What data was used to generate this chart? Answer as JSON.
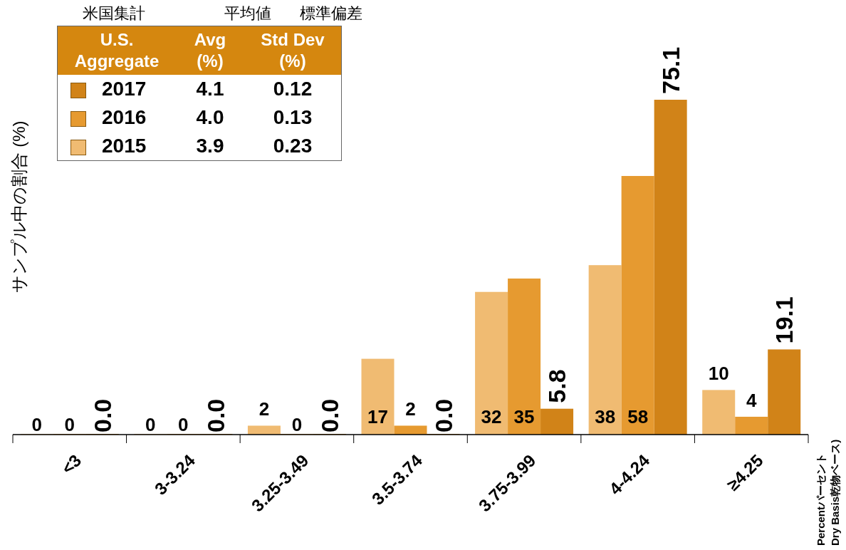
{
  "chart_data": {
    "type": "bar",
    "ylabel": "サンプル中の割合 (%)",
    "legend": "top left",
    "categories": [
      "<3",
      "3-3.24",
      "3.25-3.49",
      "3.5-3.74",
      "3.75-3.99",
      "4-4.24",
      "≥4.25"
    ],
    "series": [
      {
        "name": "2015",
        "color": "#f0bb72",
        "values": [
          0,
          0,
          2,
          17,
          32,
          38,
          10
        ],
        "value_labels": [
          "0",
          "0",
          "2",
          "17",
          "32",
          "38",
          "10"
        ]
      },
      {
        "name": "2016",
        "color": "#e69a30",
        "values": [
          0,
          0,
          0,
          2,
          35,
          58,
          4
        ],
        "value_labels": [
          "0",
          "0",
          "0",
          "2",
          "35",
          "58",
          "4"
        ]
      },
      {
        "name": "2017",
        "color": "#d18318",
        "values": [
          0,
          0,
          0,
          0,
          5.8,
          75.1,
          19.1
        ],
        "value_labels": [
          "0.0",
          "0.0",
          "0.0",
          "0.0",
          "5.8",
          "75.1",
          "19.1"
        ]
      }
    ],
    "annotations": [
      "米国集計",
      "平均値",
      "標準偏差",
      "U.S. Aggregate",
      "Avg (%)",
      "Std Dev (%)",
      "4.1",
      "0.12",
      "4.0",
      "0.13",
      "3.9",
      "0.23",
      "Percentパーセント",
      "Dry Basis乾物ベース)"
    ]
  }
}
